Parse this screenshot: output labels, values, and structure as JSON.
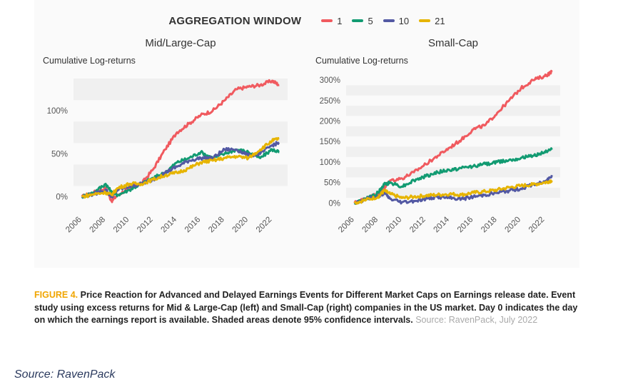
{
  "legend": {
    "title": "AGGREGATION WINDOW",
    "items": [
      {
        "label": "1",
        "color": "#f05a5f"
      },
      {
        "label": "5",
        "color": "#129b72"
      },
      {
        "label": "10",
        "color": "#5359a3"
      },
      {
        "label": "21",
        "color": "#e6b400"
      }
    ]
  },
  "chart_data": [
    {
      "type": "line",
      "title": "Mid/Large-Cap",
      "ylabel": "Cumulative Log-returns",
      "xlabel": "",
      "x_ticks": [
        "2006",
        "2008",
        "2010",
        "2012",
        "2014",
        "2016",
        "2018",
        "2020",
        "2022"
      ],
      "y_ticks": [
        "0%",
        "50%",
        "100%"
      ],
      "xlim": [
        2005.3,
        2023.3
      ],
      "ylim": [
        -0.12,
        1.5
      ],
      "grid": "shaded horizontal bands",
      "x": [
        2006,
        2007,
        2008,
        2008.5,
        2009,
        2010,
        2011,
        2012,
        2013,
        2014,
        2015,
        2016,
        2017,
        2018,
        2019,
        2020,
        2021,
        2022,
        2022.6
      ],
      "series": [
        {
          "name": "1",
          "color": "#f05a5f",
          "values": [
            0.0,
            0.05,
            0.1,
            -0.05,
            0.02,
            0.1,
            0.15,
            0.32,
            0.55,
            0.75,
            0.85,
            0.95,
            1.0,
            1.12,
            1.25,
            1.28,
            1.3,
            1.35,
            1.3
          ]
        },
        {
          "name": "5",
          "color": "#129b72",
          "values": [
            0.0,
            0.05,
            0.15,
            0.05,
            0.02,
            0.08,
            0.15,
            0.22,
            0.28,
            0.4,
            0.45,
            0.52,
            0.45,
            0.5,
            0.55,
            0.52,
            0.45,
            0.55,
            0.52
          ]
        },
        {
          "name": "10",
          "color": "#5359a3",
          "values": [
            0.0,
            0.03,
            0.08,
            0.0,
            0.08,
            0.12,
            0.15,
            0.2,
            0.28,
            0.35,
            0.42,
            0.45,
            0.45,
            0.55,
            0.55,
            0.48,
            0.5,
            0.6,
            0.63
          ]
        },
        {
          "name": "21",
          "color": "#e6b400",
          "values": [
            0.0,
            0.03,
            0.05,
            0.02,
            0.1,
            0.15,
            0.15,
            0.2,
            0.25,
            0.28,
            0.33,
            0.4,
            0.42,
            0.45,
            0.47,
            0.45,
            0.55,
            0.65,
            0.68
          ]
        }
      ]
    },
    {
      "type": "line",
      "title": "Small-Cap",
      "ylabel": "Cumulative Log-returns",
      "xlabel": "",
      "x_ticks": [
        "2006",
        "2008",
        "2010",
        "2012",
        "2014",
        "2016",
        "2018",
        "2020",
        "2022"
      ],
      "y_ticks": [
        "0%",
        "50%",
        "100%",
        "150%",
        "200%",
        "250%",
        "300%"
      ],
      "xlim": [
        2005.3,
        2023.3
      ],
      "ylim": [
        -0.1,
        3.3
      ],
      "grid": "shaded horizontal bands",
      "x": [
        2006,
        2007,
        2008,
        2008.5,
        2009,
        2010,
        2011,
        2012,
        2013,
        2014,
        2015,
        2016,
        2017,
        2018,
        2019,
        2020,
        2021,
        2022,
        2022.6
      ],
      "series": [
        {
          "name": "1",
          "color": "#f05a5f",
          "values": [
            0.0,
            0.12,
            0.22,
            0.35,
            0.55,
            0.6,
            0.75,
            0.95,
            1.15,
            1.35,
            1.55,
            1.8,
            1.9,
            2.2,
            2.5,
            2.8,
            3.0,
            3.1,
            3.2
          ]
        },
        {
          "name": "5",
          "color": "#129b72",
          "values": [
            0.0,
            0.1,
            0.25,
            0.45,
            0.5,
            0.4,
            0.55,
            0.65,
            0.75,
            0.8,
            0.85,
            0.9,
            0.95,
            1.0,
            1.05,
            1.1,
            1.15,
            1.25,
            1.3
          ]
        },
        {
          "name": "10",
          "color": "#5359a3",
          "values": [
            0.0,
            0.1,
            0.15,
            0.25,
            0.1,
            0.02,
            0.05,
            0.1,
            0.15,
            0.12,
            0.1,
            0.15,
            0.2,
            0.25,
            0.3,
            0.35,
            0.45,
            0.5,
            0.68
          ]
        },
        {
          "name": "21",
          "color": "#e6b400",
          "values": [
            0.0,
            0.08,
            0.15,
            0.3,
            0.22,
            0.12,
            0.15,
            0.18,
            0.2,
            0.22,
            0.2,
            0.25,
            0.28,
            0.32,
            0.38,
            0.42,
            0.45,
            0.5,
            0.55
          ]
        }
      ]
    }
  ],
  "caption": {
    "label": "FIGURE 4.",
    "text": "Price Reaction for Advanced and Delayed Earnings Events for Different Market Caps on Earnings release date. Event study using excess returns for Mid & Large-Cap (left) and Small-Cap (right) companies in the US market. Day 0 indicates the day on which the earnings report is available. Shaded areas denote 95% confidence intervals.",
    "source": "Source: RavenPack, July 2022"
  },
  "footer": {
    "source": "Source: RavenPack"
  }
}
